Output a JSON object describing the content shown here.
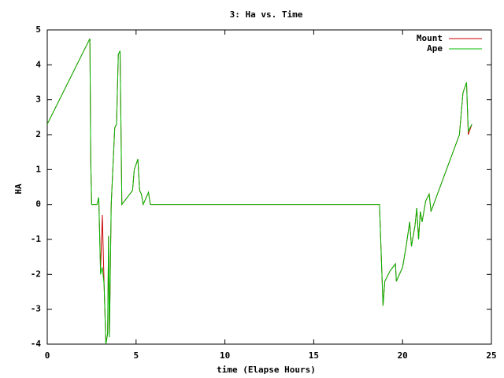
{
  "chart_data": {
    "type": "line",
    "title": "3: Ha vs. Time",
    "xlabel": "time (Elapse Hours)",
    "ylabel": "HA",
    "x": [
      0,
      2.4,
      2.45,
      2.5,
      2.8,
      2.9,
      3.0,
      3.1,
      3.2,
      3.3,
      3.4,
      3.45,
      3.5,
      3.6,
      3.8,
      3.9,
      4.0,
      4.1,
      4.2,
      4.8,
      4.9,
      5.1,
      5.2,
      5.3,
      5.4,
      5.7,
      5.8,
      18.7,
      18.9,
      19.0,
      19.3,
      19.6,
      19.65,
      20.0,
      20.2,
      20.4,
      20.5,
      20.7,
      20.8,
      20.9,
      21.0,
      21.1,
      21.3,
      21.5,
      21.6,
      23.2,
      23.4,
      23.6,
      23.7,
      23.9
    ],
    "series": [
      {
        "name": "Mount",
        "color": "#cc0000",
        "values": [
          2.3,
          4.75,
          1.2,
          0,
          0,
          0.2,
          -1.9,
          -0.3,
          -2.3,
          -4.0,
          -3.7,
          -0.9,
          -3.8,
          0,
          2.2,
          2.3,
          4.3,
          4.4,
          0,
          0.4,
          1.0,
          1.3,
          0.4,
          0.3,
          0,
          0.35,
          0,
          0,
          -2.9,
          -2.2,
          -1.9,
          -1.7,
          -2.2,
          -1.8,
          -1.2,
          -0.5,
          -1.2,
          -0.6,
          -0.1,
          -1.0,
          -0.2,
          -0.5,
          0.1,
          0.3,
          -0.2,
          2.0,
          3.2,
          3.5,
          2.0,
          2.3
        ]
      },
      {
        "name": "Ape",
        "color": "#00bb00",
        "values": [
          2.3,
          4.75,
          1.2,
          0,
          0,
          0.2,
          -2.0,
          -1.8,
          -2.3,
          -4.0,
          -3.7,
          -0.9,
          -3.8,
          0,
          2.2,
          2.3,
          4.3,
          4.4,
          0,
          0.4,
          1.0,
          1.3,
          0.4,
          0.3,
          0,
          0.35,
          0,
          0,
          -2.9,
          -2.2,
          -1.9,
          -1.7,
          -2.2,
          -1.8,
          -1.2,
          -0.5,
          -1.2,
          -0.6,
          -0.1,
          -1.0,
          -0.2,
          -0.5,
          0.1,
          0.3,
          -0.2,
          2.0,
          3.2,
          3.5,
          2.1,
          2.3
        ]
      }
    ],
    "xlim": [
      0,
      25
    ],
    "xticks": [
      0,
      5,
      10,
      15,
      20,
      25
    ],
    "ylim": [
      -4,
      5
    ],
    "yticks": [
      -4,
      -3,
      -2,
      -1,
      0,
      1,
      2,
      3,
      4,
      5
    ],
    "legend": "top-right"
  }
}
